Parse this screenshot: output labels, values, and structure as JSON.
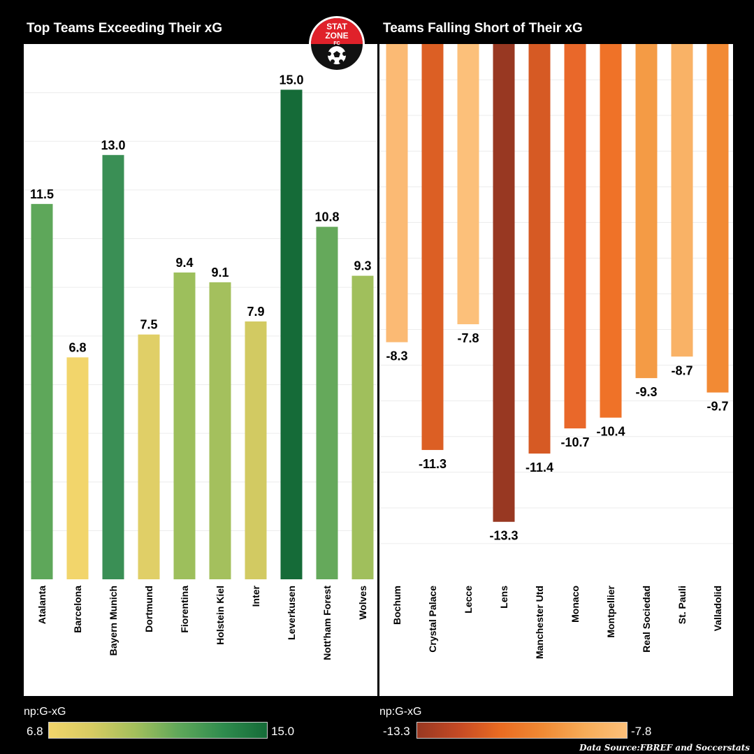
{
  "titles": {
    "left": "Top Teams Exceeding Their xG",
    "right": "Teams Falling Short of Their xG"
  },
  "logo": {
    "line1": "STAT",
    "line2": "ZONE",
    "line3": "FC",
    "icon": "soccer-ball-icon"
  },
  "colorbars": {
    "left": {
      "label": "np:G-xG",
      "min": "6.8",
      "max": "15.0"
    },
    "right": {
      "label": "np:G-xG",
      "min": "-13.3",
      "max": "-7.8"
    }
  },
  "source": "Data Source:FBREF  and Soccerstats",
  "chart_data": [
    {
      "type": "bar",
      "title": "Top Teams Exceeding Their xG",
      "ylabel": "",
      "ylim": [
        0,
        16.4
      ],
      "grid": true,
      "categories": [
        "Atalanta",
        "Barcelona",
        "Bayern Munich",
        "Dortmund",
        "Fiorentina",
        "Holstein Kiel",
        "Inter",
        "Leverkusen",
        "Nott'ham Forest",
        "Wolves"
      ],
      "values": [
        11.5,
        6.8,
        13.0,
        7.5,
        9.4,
        9.1,
        7.9,
        15.0,
        10.8,
        9.3
      ],
      "labels": [
        "11.5",
        "6.8",
        "13.0",
        "7.5",
        "9.4",
        "9.1",
        "7.9",
        "15.0",
        "10.8",
        "9.3"
      ],
      "colors": [
        "#5ea75a",
        "#f2d56b",
        "#3a8f55",
        "#e0cf67",
        "#9dbf5c",
        "#a4c05d",
        "#d2ca62",
        "#156b38",
        "#65a95b",
        "#a0bf5c"
      ]
    },
    {
      "type": "bar",
      "title": "Teams Falling Short of Their xG",
      "ylabel": "",
      "ylim": [
        -14.9,
        0
      ],
      "grid": true,
      "categories": [
        "Bochum",
        "Crystal Palace",
        "Lecce",
        "Lens",
        "Manchester Utd",
        "Monaco",
        "Montpellier",
        "Real Sociedad",
        "St. Pauli",
        "Valladolid"
      ],
      "values": [
        -8.3,
        -11.3,
        -7.8,
        -13.3,
        -11.4,
        -10.7,
        -10.4,
        -9.3,
        -8.7,
        -9.7
      ],
      "labels": [
        "-8.3",
        "-11.3",
        "-7.8",
        "-13.3",
        "-11.4",
        "-10.7",
        "-10.4",
        "-9.3",
        "-8.7",
        "-9.7"
      ],
      "colors": [
        "#fbba74",
        "#dc5f24",
        "#fcc07a",
        "#983822",
        "#d65a24",
        "#e9682a",
        "#ef7228",
        "#f49b45",
        "#f9b266",
        "#f28a34"
      ]
    }
  ]
}
